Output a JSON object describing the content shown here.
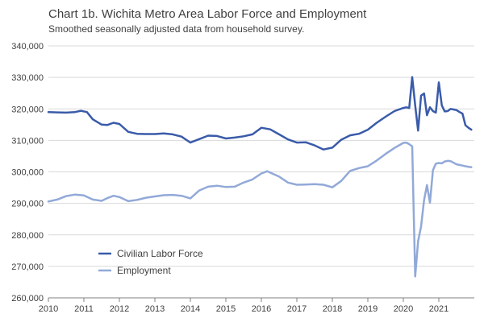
{
  "chart_data": {
    "type": "line",
    "title": "Chart 1b. Wichita Metro Area Labor Force and Employment",
    "subtitle": "Smoothed seasonally adjusted data from household survey.",
    "xlabel": "",
    "ylabel": "",
    "xlim": [
      2010,
      2022
    ],
    "ylim": [
      260000,
      340000
    ],
    "x_ticks": [
      2010,
      2011,
      2012,
      2013,
      2014,
      2015,
      2016,
      2017,
      2018,
      2019,
      2020,
      2021
    ],
    "x_tick_labels": [
      "2010",
      "2011",
      "2012",
      "2013",
      "2014",
      "2015",
      "2016",
      "2017",
      "2018",
      "2019",
      "2020",
      "2021"
    ],
    "y_ticks": [
      260000,
      270000,
      280000,
      290000,
      300000,
      310000,
      320000,
      330000,
      340000
    ],
    "y_tick_labels": [
      "260,000",
      "270,000",
      "280,000",
      "290,000",
      "300,000",
      "310,000",
      "320,000",
      "330,000",
      "340,000"
    ],
    "grid": "horizontal",
    "legend_position": "bottom-left inside plot",
    "series": [
      {
        "name": "Civilian Labor Force",
        "color": "#3a5ba9",
        "x": [
          2010.0,
          2010.25,
          2010.5,
          2010.75,
          2010.917,
          2011.083,
          2011.25,
          2011.5,
          2011.667,
          2011.833,
          2012.0,
          2012.25,
          2012.5,
          2012.75,
          2013.0,
          2013.25,
          2013.5,
          2013.75,
          2014.0,
          2014.25,
          2014.5,
          2014.75,
          2015.0,
          2015.25,
          2015.5,
          2015.75,
          2016.0,
          2016.25,
          2016.5,
          2016.75,
          2017.0,
          2017.25,
          2017.5,
          2017.75,
          2018.0,
          2018.25,
          2018.5,
          2018.75,
          2019.0,
          2019.25,
          2019.5,
          2019.75,
          2020.0,
          2020.083,
          2020.167,
          2020.25,
          2020.333,
          2020.417,
          2020.5,
          2020.583,
          2020.667,
          2020.75,
          2020.833,
          2020.917,
          2021.0,
          2021.083,
          2021.167,
          2021.25,
          2021.333,
          2021.417,
          2021.5,
          2021.583,
          2021.667,
          2021.75,
          2021.833,
          2021.917
        ],
        "values": [
          319000,
          318900,
          318800,
          319000,
          319400,
          319000,
          316700,
          315000,
          314900,
          315600,
          315200,
          312700,
          312100,
          312000,
          312000,
          312200,
          311900,
          311200,
          309300,
          310400,
          311500,
          311400,
          310600,
          310900,
          311300,
          311900,
          314000,
          313500,
          311900,
          310300,
          309300,
          309400,
          308400,
          307100,
          307700,
          310200,
          311600,
          312100,
          313400,
          315600,
          317500,
          319300,
          320300,
          320500,
          320300,
          330100,
          321100,
          313100,
          324200,
          324900,
          318000,
          320500,
          319300,
          318800,
          328400,
          321100,
          319200,
          319300,
          320000,
          319800,
          319600,
          319000,
          318500,
          314800,
          314000,
          313400
        ]
      },
      {
        "name": "Employment",
        "color": "#92a9d8",
        "x": [
          2010.0,
          2010.25,
          2010.5,
          2010.75,
          2011.0,
          2011.25,
          2011.5,
          2011.667,
          2011.833,
          2012.0,
          2012.25,
          2012.5,
          2012.75,
          2013.0,
          2013.25,
          2013.5,
          2013.75,
          2014.0,
          2014.25,
          2014.5,
          2014.75,
          2015.0,
          2015.25,
          2015.5,
          2015.75,
          2016.0,
          2016.167,
          2016.5,
          2016.75,
          2017.0,
          2017.25,
          2017.5,
          2017.75,
          2018.0,
          2018.25,
          2018.5,
          2018.75,
          2019.0,
          2019.25,
          2019.5,
          2019.75,
          2020.0,
          2020.083,
          2020.167,
          2020.25,
          2020.333,
          2020.417,
          2020.5,
          2020.583,
          2020.667,
          2020.75,
          2020.833,
          2020.917,
          2021.0,
          2021.083,
          2021.167,
          2021.25,
          2021.333,
          2021.417,
          2021.5,
          2021.583,
          2021.667,
          2021.75,
          2021.833,
          2021.917
        ],
        "values": [
          290600,
          291200,
          292300,
          292800,
          292500,
          291200,
          290800,
          291700,
          292400,
          292000,
          290700,
          291100,
          291800,
          292200,
          292600,
          292700,
          292400,
          291600,
          294100,
          295300,
          295600,
          295200,
          295300,
          296600,
          297600,
          299500,
          300200,
          298500,
          296600,
          295900,
          296000,
          296100,
          295900,
          295100,
          297100,
          300300,
          301200,
          301800,
          303600,
          305700,
          307600,
          309200,
          309300,
          308800,
          308100,
          266800,
          278000,
          282700,
          291000,
          295800,
          290200,
          300500,
          302600,
          302800,
          302700,
          303300,
          303500,
          303400,
          302900,
          302400,
          302200,
          302000,
          301800,
          301600,
          301500
        ]
      }
    ]
  }
}
